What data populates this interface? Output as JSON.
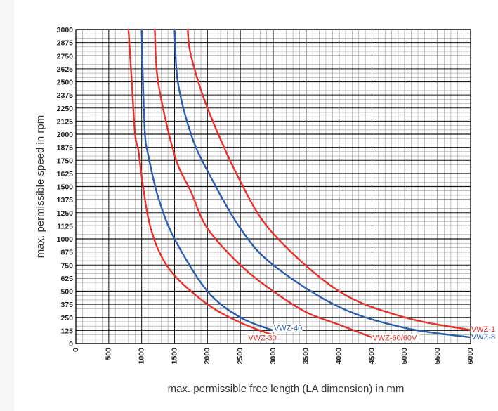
{
  "chart_data": {
    "type": "line",
    "xlabel": "max. permissible free length (LA dimension) in mm",
    "ylabel": "max. permissible speed in rpm",
    "xlim": [
      0,
      6000
    ],
    "ylim": [
      0,
      3000
    ],
    "x_ticks": [
      "0",
      "500",
      "1000",
      "1500",
      "2000",
      "2500",
      "3000",
      "3500",
      "4000",
      "4500",
      "5000",
      "5500",
      "6000"
    ],
    "y_ticks": [
      "0",
      "125",
      "250",
      "375",
      "500",
      "625",
      "750",
      "875",
      "1000",
      "1125",
      "1250",
      "1375",
      "1500",
      "1625",
      "1750",
      "1875",
      "2000",
      "2125",
      "2250",
      "2375",
      "2500",
      "2625",
      "2750",
      "2875",
      "3000"
    ],
    "grid": true,
    "series": [
      {
        "name": "VWZ-30",
        "color": "#e8312a",
        "x": [
          800,
          850,
          900,
          950,
          1000,
          1100,
          1250,
          1500,
          2000,
          2500,
          3000
        ],
        "y": [
          3000,
          2500,
          2000,
          1850,
          1600,
          1200,
          900,
          650,
          375,
          200,
          80
        ]
      },
      {
        "name": "VWZ-40",
        "color": "#2a5db0",
        "x": [
          1000,
          1020,
          1050,
          1100,
          1250,
          1500,
          2000,
          2500,
          3000
        ],
        "y": [
          3000,
          2500,
          2000,
          1800,
          1400,
          1000,
          500,
          250,
          125
        ]
      },
      {
        "name": "",
        "color": "#e8312a",
        "x": [
          1200,
          1250,
          1500,
          1750,
          2000,
          2500,
          3000,
          3500,
          4000,
          4500
        ],
        "y": [
          3000,
          2500,
          1800,
          1450,
          1100,
          750,
          500,
          300,
          180,
          60
        ]
      },
      {
        "name": "",
        "color": "#2a5db0",
        "x": [
          1500,
          1550,
          1750,
          2000,
          2500,
          3000,
          4000,
          5000,
          6000
        ],
        "y": [
          3000,
          2500,
          2000,
          1650,
          1100,
          750,
          350,
          150,
          60
        ]
      },
      {
        "name": "VWZ-60/60V",
        "color": "#e8312a",
        "x": [
          1700,
          1750,
          2000,
          2500,
          3000,
          4000,
          5000,
          6000
        ],
        "y": [
          3000,
          2750,
          2250,
          1550,
          1050,
          500,
          250,
          130
        ]
      }
    ],
    "series_labels": [
      {
        "text": "VWZ-30",
        "x": 2620,
        "y": 30,
        "color": "#e8312a"
      },
      {
        "text": "VWZ-40",
        "x": 3010,
        "y": 125,
        "color": "#2a5db0"
      },
      {
        "text": "VWZ-60/60V",
        "x": 4510,
        "y": 30,
        "color": "#e8312a"
      },
      {
        "text": "VWZ-1",
        "x": 6010,
        "y": 115,
        "color": "#e8312a"
      },
      {
        "text": "VWZ-8",
        "x": 6010,
        "y": 40,
        "color": "#2a5db0"
      }
    ]
  }
}
